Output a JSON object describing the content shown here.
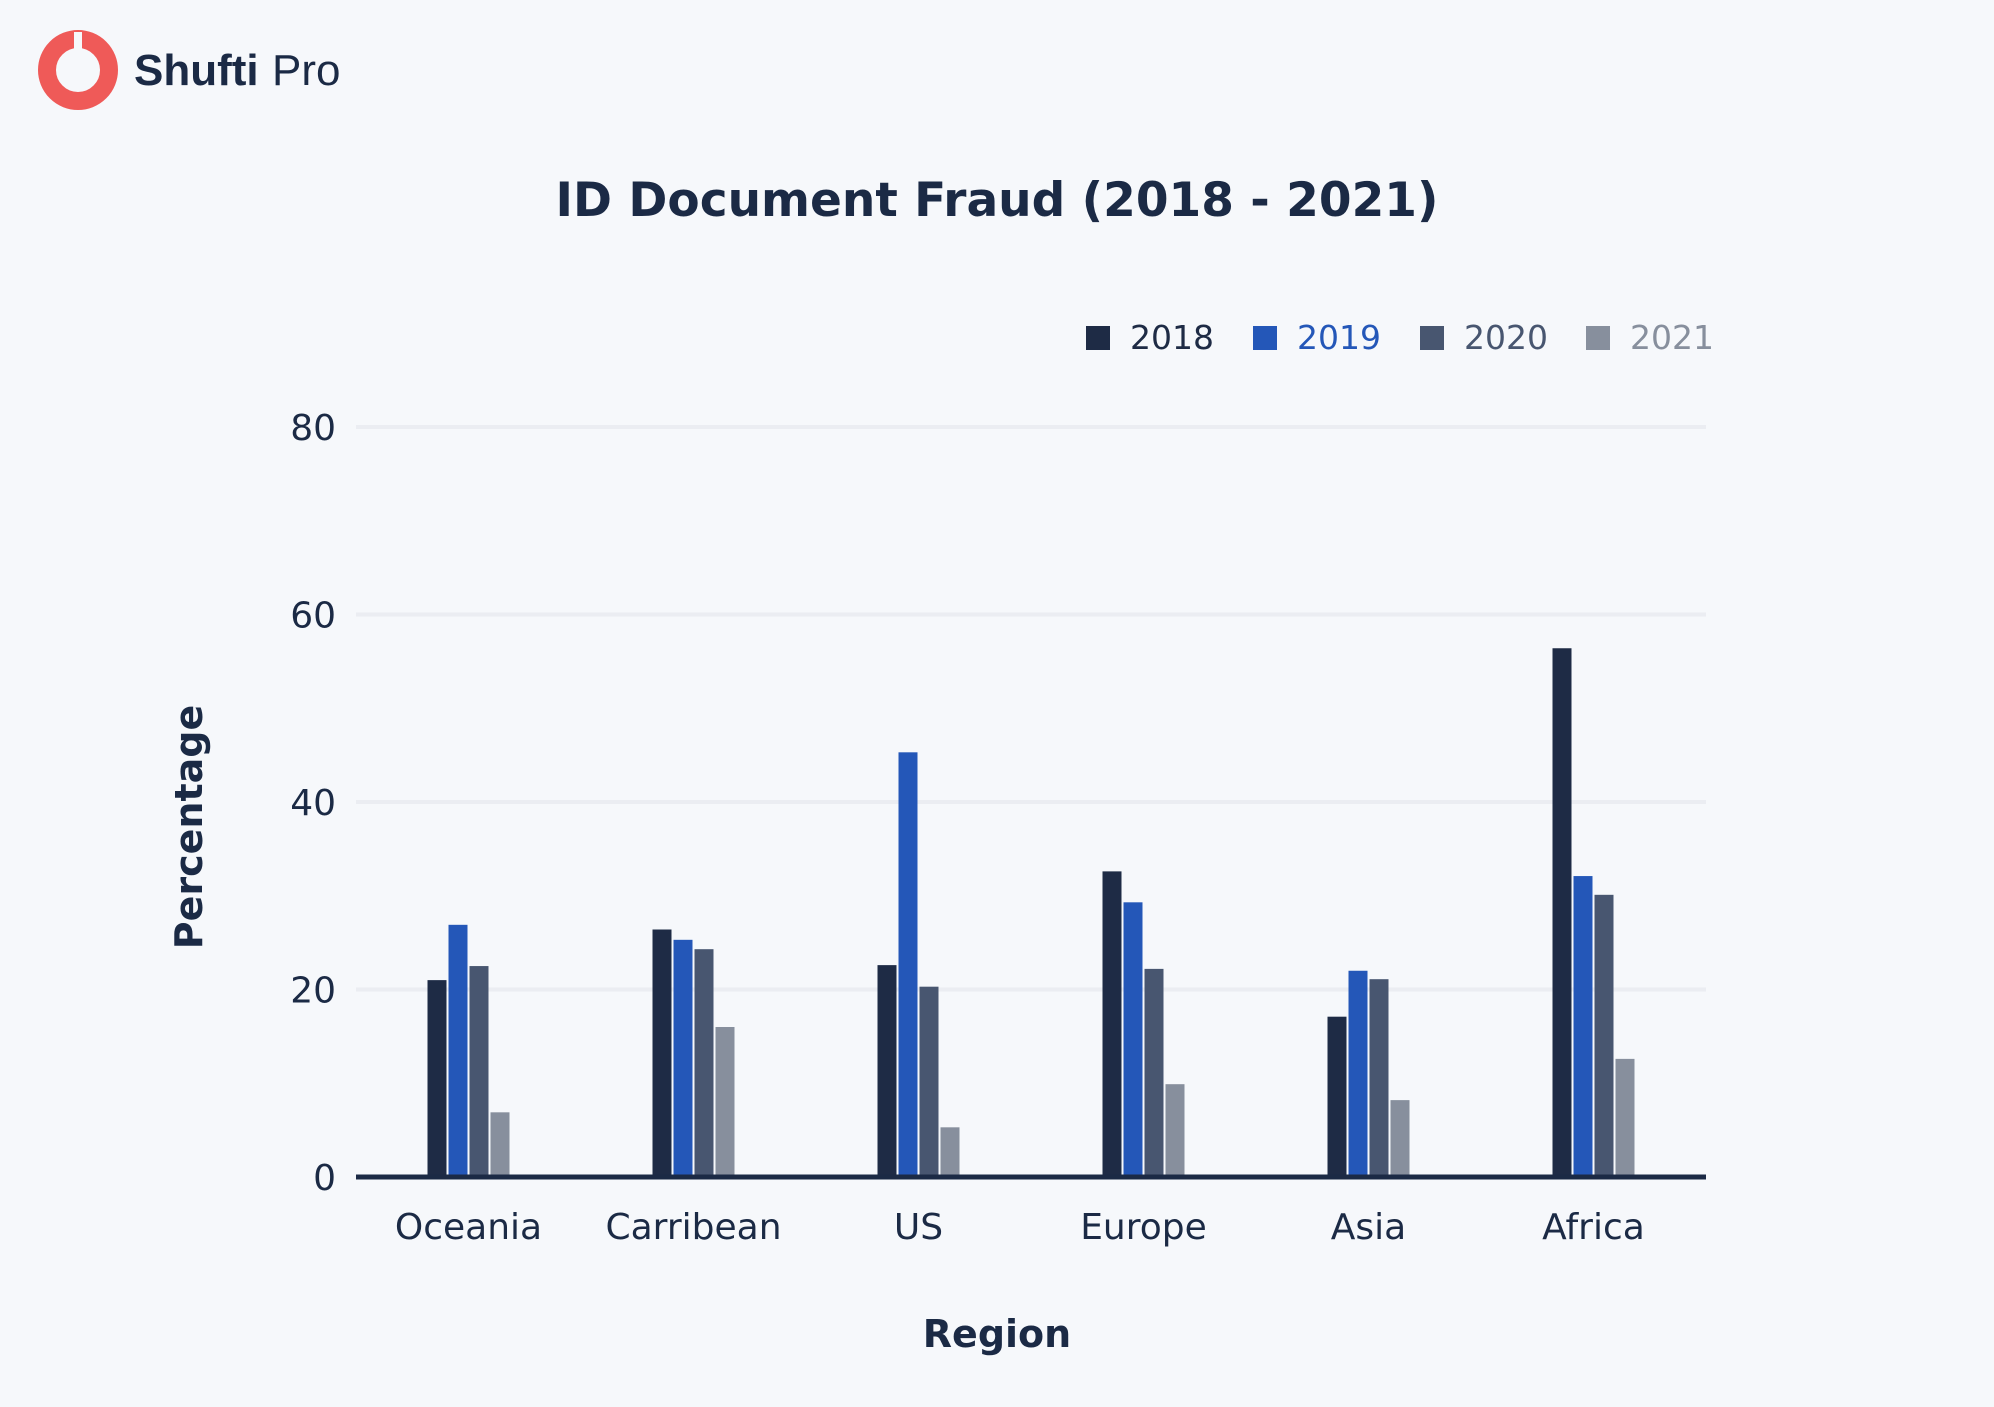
{
  "brand": {
    "name_bold": "Shufti",
    "name_light": "Pro",
    "logo_color": "#ef5a58",
    "text_color": "#1b2a45"
  },
  "chart_data": {
    "type": "bar",
    "title": "ID Document Fraud (2018 - 2021)",
    "xlabel": "Region",
    "ylabel": "Percentage",
    "categories": [
      "Oceania",
      "Carribean",
      "US",
      "Europe",
      "Asia",
      "Africa"
    ],
    "series": [
      {
        "name": "2018",
        "color": "#1e2b45",
        "legend_text_color": "#1e2b45",
        "values": [
          21,
          26.4,
          22.6,
          32.6,
          17.1,
          56.4
        ]
      },
      {
        "name": "2019",
        "color": "#2457b8",
        "legend_text_color": "#2457b8",
        "values": [
          26.9,
          25.3,
          45.3,
          29.3,
          22,
          32.1
        ]
      },
      {
        "name": "2020",
        "color": "#485670",
        "legend_text_color": "#485670",
        "values": [
          22.5,
          24.3,
          20.3,
          22.2,
          21.1,
          30.1
        ]
      },
      {
        "name": "2021",
        "color": "#878f9d",
        "legend_text_color": "#878f9d",
        "values": [
          6.9,
          16,
          5.3,
          9.9,
          8.2,
          12.6
        ]
      }
    ],
    "yticks": [
      0,
      20,
      40,
      60,
      80
    ],
    "ylim": [
      0,
      80
    ],
    "grid": true,
    "legend_position": "top-right"
  }
}
